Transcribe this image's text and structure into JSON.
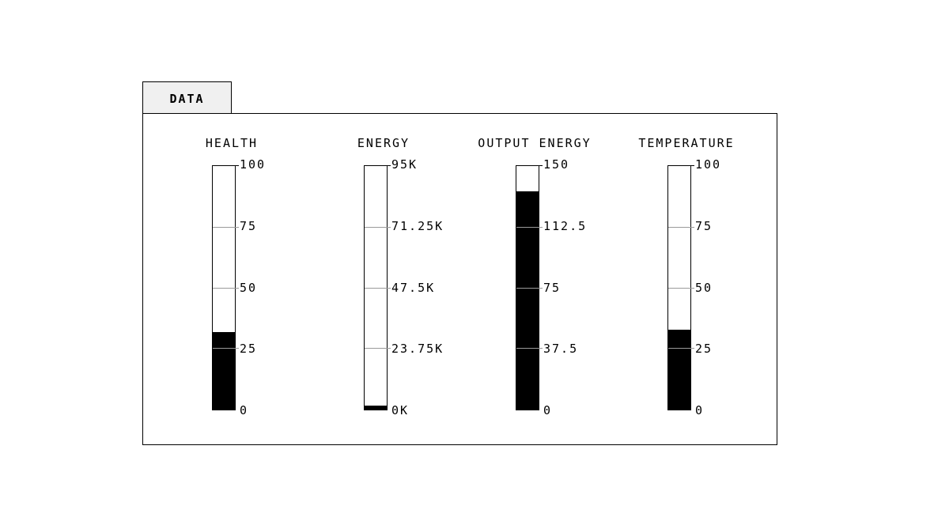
{
  "tab": {
    "label": "DATA"
  },
  "gauges": [
    {
      "label": "HEALTH",
      "fill_fraction": 0.32,
      "ticks": [
        "100",
        "75",
        "50",
        "25",
        "0"
      ]
    },
    {
      "label": "ENERGY",
      "fill_fraction": 0.015,
      "ticks": [
        "95K",
        "71.25K",
        "47.5K",
        "23.75K",
        "0K"
      ]
    },
    {
      "label": "OUTPUT ENERGY",
      "fill_fraction": 0.9,
      "ticks": [
        "150",
        "112.5",
        "75",
        "37.5",
        "0"
      ]
    },
    {
      "label": "TEMPERATURE",
      "fill_fraction": 0.33,
      "ticks": [
        "100",
        "75",
        "50",
        "25",
        "0"
      ]
    }
  ],
  "colors": {
    "fill": "#000000",
    "grid": "#9a9a9a",
    "tab_bg": "#f0f0f0"
  }
}
